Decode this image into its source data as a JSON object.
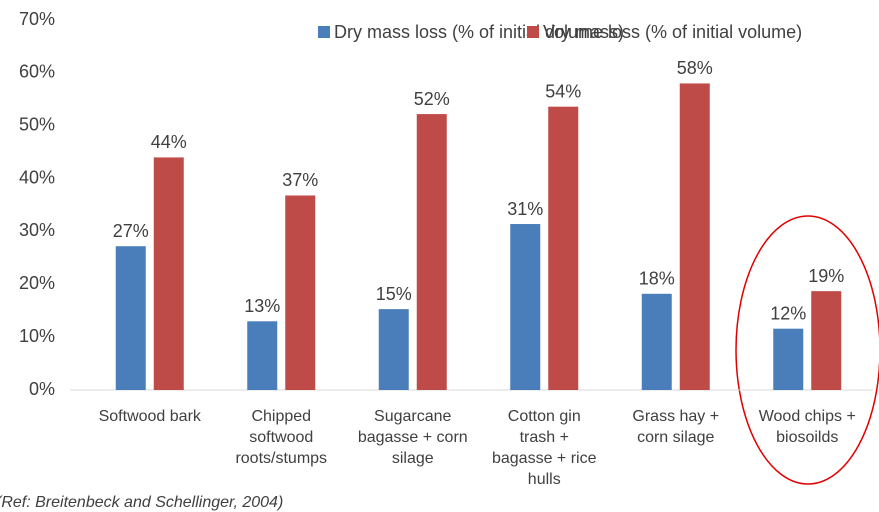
{
  "chart_data": {
    "type": "bar",
    "categories": [
      "Softwood bark",
      "Chipped\nsoftwood\nroots/stumps",
      "Sugarcane\nbagasse + corn\nsilage",
      "Cotton gin\ntrash +\nbagasse + rice\nhulls",
      "Grass hay +\ncorn silage",
      "Wood chips +\nbiosoilds"
    ],
    "series": [
      {
        "name": "Dry mass loss (% of initial dry mass)",
        "color": "#4a7ebb",
        "values": [
          27.2,
          13,
          15.3,
          31.4,
          18.2,
          11.6
        ],
        "value_labels": [
          "27%",
          "13%",
          "15%",
          "31%",
          "18%",
          "12%"
        ]
      },
      {
        "name": "Volume loss (% of initial volume)",
        "color": "#be4b48",
        "values": [
          44,
          36.8,
          52.2,
          53.6,
          58,
          18.7
        ],
        "value_labels": [
          "44%",
          "37%",
          "52%",
          "54%",
          "58%",
          "19%"
        ]
      }
    ],
    "ylim": [
      0,
      70
    ],
    "yticks": [
      {
        "value": 0,
        "label": "0%"
      },
      {
        "value": 10,
        "label": "10%"
      },
      {
        "value": 20,
        "label": "20%"
      },
      {
        "value": 30,
        "label": "30%"
      },
      {
        "value": 40,
        "label": "40%"
      },
      {
        "value": 50,
        "label": "50%"
      },
      {
        "value": 60,
        "label": "60%"
      },
      {
        "value": 70,
        "label": "70%"
      }
    ],
    "grid": false,
    "legend": "top",
    "footnote": "(Ref: Breitenbeck and Schellinger, 2004)"
  }
}
